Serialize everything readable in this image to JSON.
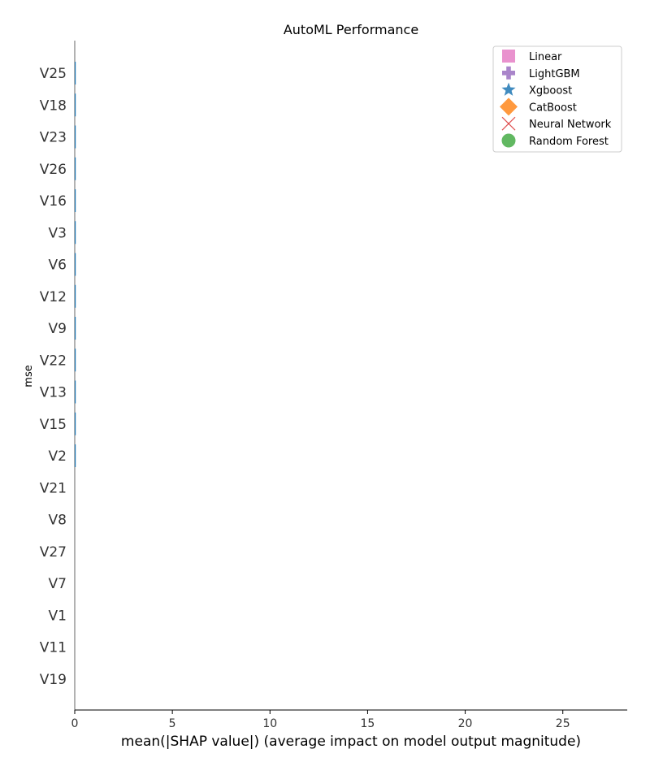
{
  "chart_data": {
    "type": "bar",
    "orientation": "horizontal",
    "title": "AutoML Performance",
    "xlabel": "mean(|SHAP value|) (average impact on model output magnitude)",
    "ylabel": "mse",
    "xlim": [
      0,
      28.3
    ],
    "xticks": [
      0,
      5,
      10,
      15,
      20,
      25
    ],
    "categories": [
      "V25",
      "V18",
      "V23",
      "V26",
      "V16",
      "V3",
      "V6",
      "V12",
      "V9",
      "V22",
      "V13",
      "V15",
      "V2",
      "V21",
      "V8",
      "V27",
      "V7",
      "V1",
      "V11",
      "V19"
    ],
    "values": [
      0.05,
      0.05,
      0.05,
      0.05,
      0.05,
      0.05,
      0.05,
      0.05,
      0.05,
      0.05,
      0.05,
      0.05,
      0.05,
      0,
      0,
      0,
      0,
      0,
      0,
      0
    ],
    "bar_color": "#1f77b4",
    "grid": false,
    "legend_position": "top-right",
    "legend": [
      {
        "label": "Linear",
        "marker": "square",
        "color": "#e377c2"
      },
      {
        "label": "LightGBM",
        "marker": "plus",
        "color": "#9467bd"
      },
      {
        "label": "Xgboost",
        "marker": "star",
        "color": "#1f77b4"
      },
      {
        "label": "CatBoost",
        "marker": "diamond",
        "color": "#ff7f0e"
      },
      {
        "label": "Neural Network",
        "marker": "x",
        "color": "#d62728"
      },
      {
        "label": "Random Forest",
        "marker": "circle",
        "color": "#2ca02c"
      }
    ]
  }
}
